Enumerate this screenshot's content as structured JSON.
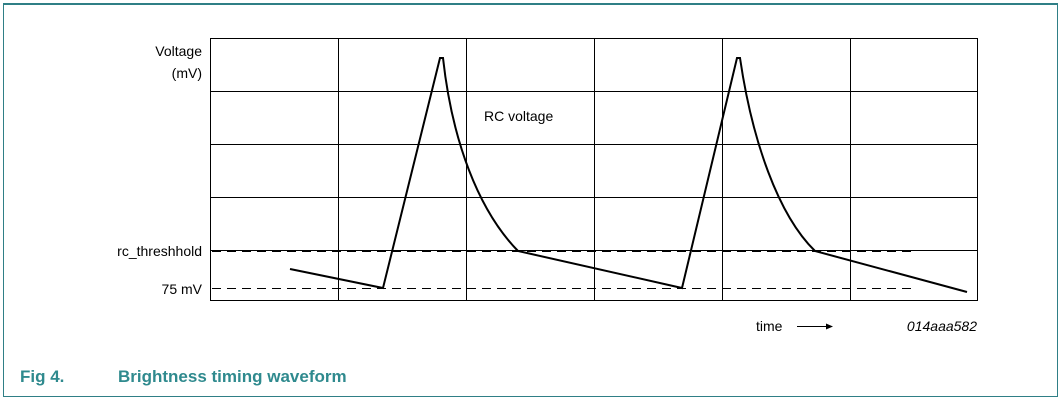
{
  "figure": {
    "number": "Fig 4.",
    "title": "Brightness timing waveform",
    "ref_code": "014aaa582"
  },
  "chart_data": {
    "type": "line",
    "ylabel_line1": "Voltage",
    "ylabel_line2": "(mV)",
    "xlabel": "time",
    "annotations": {
      "curve_label": "RC voltage",
      "threshold_label": "rc_threshhold",
      "baseline_label": "75 mV"
    },
    "grid": true,
    "colors": {
      "accent": "#2f8a8e",
      "border": "#2f7f86",
      "line": "#000000"
    }
  }
}
